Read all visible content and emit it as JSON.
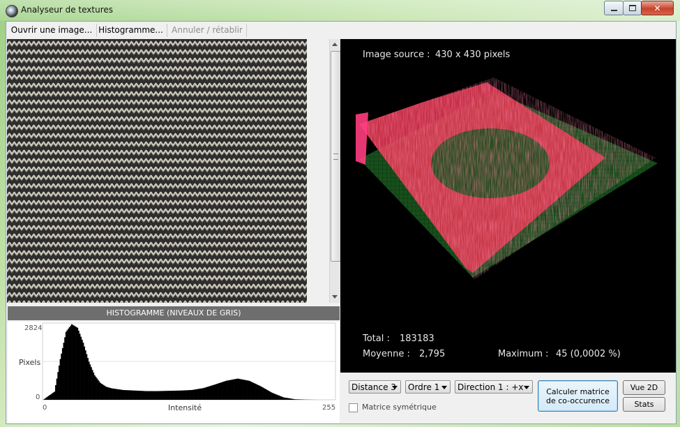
{
  "window": {
    "title": "Analyseur de textures"
  },
  "toolbar": {
    "open": "Ouvrir une image...",
    "histogram": "Histogramme...",
    "undo": "Annuler / rétablir"
  },
  "histogram": {
    "title": "HISTOGRAMME (NIVEAUX DE GRIS)",
    "ymax_label": "2824",
    "ylabel": "Pixels",
    "y0_label": "0",
    "x0_label": "0",
    "xlabel": "Intensité",
    "xmax_label": "255"
  },
  "chart_data": {
    "type": "bar",
    "title": "HISTOGRAMME (NIVEAUX DE GRIS)",
    "xlabel": "Intensité",
    "ylabel": "Pixels",
    "xlim": [
      0,
      255
    ],
    "ylim": [
      0,
      2824
    ],
    "x": [
      0,
      10,
      15,
      20,
      25,
      30,
      35,
      40,
      45,
      50,
      55,
      60,
      70,
      80,
      90,
      100,
      110,
      120,
      130,
      140,
      150,
      160,
      170,
      180,
      190,
      200,
      210,
      220,
      230,
      240,
      250,
      255
    ],
    "values": [
      0,
      300,
      1500,
      2500,
      2780,
      2650,
      2100,
      1400,
      900,
      620,
      480,
      420,
      360,
      340,
      320,
      320,
      330,
      340,
      360,
      430,
      560,
      700,
      780,
      700,
      500,
      260,
      90,
      20,
      5,
      0,
      0,
      0
    ]
  },
  "view3d": {
    "source_label": "Image source :",
    "source_value": "430 x 430 pixels",
    "total_label": "Total :",
    "total_value": "183183",
    "mean_label": "Moyenne :",
    "mean_value": "2,795",
    "max_label": "Maximum :",
    "max_value": "45 (0,0002 %)"
  },
  "controls": {
    "distance": "Distance 3",
    "order": "Ordre 1",
    "direction": "Direction 1 : +x",
    "symmetric": "Matrice symétrique",
    "compute": "Calculer matrice de co-occurence",
    "view2d": "Vue 2D",
    "stats": "Stats"
  },
  "colors": {
    "accent": "#ff4d6d",
    "grid": "#0f4a14"
  }
}
